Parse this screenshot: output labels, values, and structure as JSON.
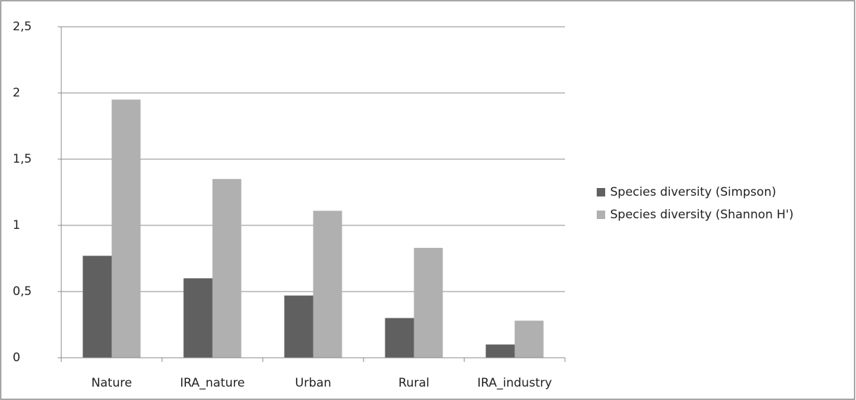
{
  "chart_data": {
    "type": "bar",
    "categories": [
      "Nature",
      "IRA_nature",
      "Urban",
      "Rural",
      "IRA_industry"
    ],
    "series": [
      {
        "name": "Species diversity (Simpson)",
        "color": "#606060",
        "values": [
          0.77,
          0.6,
          0.47,
          0.3,
          0.1
        ]
      },
      {
        "name": "Species diversity (Shannon H')",
        "color": "#b0b0b0",
        "values": [
          1.95,
          1.35,
          1.11,
          0.83,
          0.28
        ]
      }
    ],
    "ylim": [
      0,
      2.5
    ],
    "yticks": [
      0,
      {
        "value": 0.5,
        "label": "0,5"
      },
      1,
      {
        "value": 1.5,
        "label": "1,5"
      },
      2,
      {
        "value": 2.5,
        "label": "2,5"
      }
    ],
    "grid": true,
    "legend": "right"
  }
}
